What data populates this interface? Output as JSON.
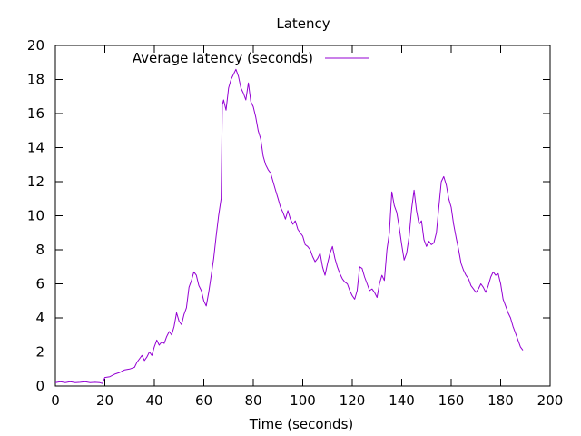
{
  "chart_data": {
    "type": "line",
    "title": "Latency",
    "xlabel": "Time (seconds)",
    "ylabel": "",
    "xlim": [
      0,
      200
    ],
    "ylim": [
      0,
      20
    ],
    "xticks": [
      0,
      20,
      40,
      60,
      80,
      100,
      120,
      140,
      160,
      180,
      200
    ],
    "yticks": [
      0,
      2,
      4,
      6,
      8,
      10,
      12,
      14,
      16,
      18,
      20
    ],
    "grid": false,
    "legend_position": "top-left",
    "series": [
      {
        "name": "Average latency (seconds)",
        "color": "#9400d3",
        "points": [
          [
            0,
            0.2
          ],
          [
            2,
            0.25
          ],
          [
            4,
            0.2
          ],
          [
            6,
            0.25
          ],
          [
            8,
            0.2
          ],
          [
            10,
            0.22
          ],
          [
            12,
            0.25
          ],
          [
            14,
            0.2
          ],
          [
            16,
            0.22
          ],
          [
            18,
            0.2
          ],
          [
            19,
            0.15
          ],
          [
            20,
            0.5
          ],
          [
            22,
            0.55
          ],
          [
            24,
            0.7
          ],
          [
            26,
            0.8
          ],
          [
            28,
            0.95
          ],
          [
            30,
            1.0
          ],
          [
            32,
            1.1
          ],
          [
            33,
            1.4
          ],
          [
            34,
            1.6
          ],
          [
            35,
            1.8
          ],
          [
            36,
            1.5
          ],
          [
            37,
            1.7
          ],
          [
            38,
            2.0
          ],
          [
            39,
            1.8
          ],
          [
            40,
            2.3
          ],
          [
            41,
            2.7
          ],
          [
            42,
            2.4
          ],
          [
            43,
            2.6
          ],
          [
            44,
            2.5
          ],
          [
            45,
            2.9
          ],
          [
            46,
            3.2
          ],
          [
            47,
            3.0
          ],
          [
            48,
            3.5
          ],
          [
            49,
            4.3
          ],
          [
            50,
            3.8
          ],
          [
            51,
            3.6
          ],
          [
            52,
            4.2
          ],
          [
            53,
            4.6
          ],
          [
            54,
            5.8
          ],
          [
            55,
            6.2
          ],
          [
            56,
            6.7
          ],
          [
            57,
            6.5
          ],
          [
            58,
            5.9
          ],
          [
            59,
            5.6
          ],
          [
            60,
            5.0
          ],
          [
            61,
            4.7
          ],
          [
            62,
            5.5
          ],
          [
            63,
            6.5
          ],
          [
            64,
            7.5
          ],
          [
            65,
            8.8
          ],
          [
            66,
            10.0
          ],
          [
            67,
            11.0
          ],
          [
            67.5,
            16.5
          ],
          [
            68,
            16.8
          ],
          [
            69,
            16.2
          ],
          [
            70,
            17.5
          ],
          [
            71,
            18.0
          ],
          [
            72,
            18.3
          ],
          [
            73,
            18.6
          ],
          [
            74,
            18.2
          ],
          [
            75,
            17.5
          ],
          [
            76,
            17.2
          ],
          [
            77,
            16.8
          ],
          [
            78,
            17.8
          ],
          [
            79,
            16.7
          ],
          [
            80,
            16.4
          ],
          [
            81,
            15.8
          ],
          [
            82,
            15.0
          ],
          [
            83,
            14.5
          ],
          [
            84,
            13.5
          ],
          [
            85,
            13.0
          ],
          [
            86,
            12.7
          ],
          [
            87,
            12.5
          ],
          [
            88,
            12.0
          ],
          [
            89,
            11.5
          ],
          [
            90,
            11.0
          ],
          [
            91,
            10.5
          ],
          [
            92,
            10.2
          ],
          [
            93,
            9.8
          ],
          [
            94,
            10.3
          ],
          [
            95,
            9.8
          ],
          [
            96,
            9.5
          ],
          [
            97,
            9.7
          ],
          [
            98,
            9.2
          ],
          [
            99,
            9.0
          ],
          [
            100,
            8.8
          ],
          [
            101,
            8.3
          ],
          [
            102,
            8.2
          ],
          [
            103,
            8.0
          ],
          [
            104,
            7.6
          ],
          [
            105,
            7.3
          ],
          [
            106,
            7.5
          ],
          [
            107,
            7.8
          ],
          [
            108,
            7.0
          ],
          [
            109,
            6.5
          ],
          [
            110,
            7.2
          ],
          [
            111,
            7.8
          ],
          [
            112,
            8.2
          ],
          [
            113,
            7.5
          ],
          [
            114,
            7.0
          ],
          [
            115,
            6.6
          ],
          [
            116,
            6.3
          ],
          [
            117,
            6.1
          ],
          [
            118,
            6.0
          ],
          [
            119,
            5.6
          ],
          [
            120,
            5.3
          ],
          [
            121,
            5.1
          ],
          [
            122,
            5.6
          ],
          [
            123,
            7.0
          ],
          [
            124,
            6.9
          ],
          [
            125,
            6.4
          ],
          [
            126,
            6.0
          ],
          [
            127,
            5.6
          ],
          [
            128,
            5.7
          ],
          [
            129,
            5.5
          ],
          [
            130,
            5.2
          ],
          [
            131,
            6.0
          ],
          [
            132,
            6.5
          ],
          [
            133,
            6.2
          ],
          [
            134,
            8.0
          ],
          [
            135,
            9.0
          ],
          [
            136,
            11.4
          ],
          [
            137,
            10.6
          ],
          [
            138,
            10.2
          ],
          [
            139,
            9.3
          ],
          [
            140,
            8.3
          ],
          [
            141,
            7.4
          ],
          [
            142,
            7.8
          ],
          [
            143,
            8.8
          ],
          [
            144,
            10.4
          ],
          [
            145,
            11.5
          ],
          [
            146,
            10.3
          ],
          [
            147,
            9.5
          ],
          [
            148,
            9.7
          ],
          [
            149,
            8.6
          ],
          [
            150,
            8.2
          ],
          [
            151,
            8.5
          ],
          [
            152,
            8.3
          ],
          [
            153,
            8.4
          ],
          [
            154,
            9.0
          ],
          [
            155,
            10.5
          ],
          [
            156,
            12.0
          ],
          [
            157,
            12.3
          ],
          [
            158,
            11.8
          ],
          [
            159,
            11.0
          ],
          [
            160,
            10.5
          ],
          [
            161,
            9.5
          ],
          [
            162,
            8.7
          ],
          [
            163,
            8.0
          ],
          [
            164,
            7.2
          ],
          [
            165,
            6.8
          ],
          [
            166,
            6.5
          ],
          [
            167,
            6.3
          ],
          [
            168,
            5.9
          ],
          [
            169,
            5.7
          ],
          [
            170,
            5.5
          ],
          [
            171,
            5.7
          ],
          [
            172,
            6.0
          ],
          [
            173,
            5.8
          ],
          [
            174,
            5.5
          ],
          [
            175,
            5.9
          ],
          [
            176,
            6.4
          ],
          [
            177,
            6.7
          ],
          [
            178,
            6.5
          ],
          [
            179,
            6.6
          ],
          [
            180,
            6.0
          ],
          [
            181,
            5.1
          ],
          [
            182,
            4.7
          ],
          [
            183,
            4.3
          ],
          [
            184,
            4.0
          ],
          [
            185,
            3.5
          ],
          [
            186,
            3.1
          ],
          [
            187,
            2.7
          ],
          [
            188,
            2.3
          ],
          [
            189,
            2.1
          ]
        ]
      }
    ]
  }
}
